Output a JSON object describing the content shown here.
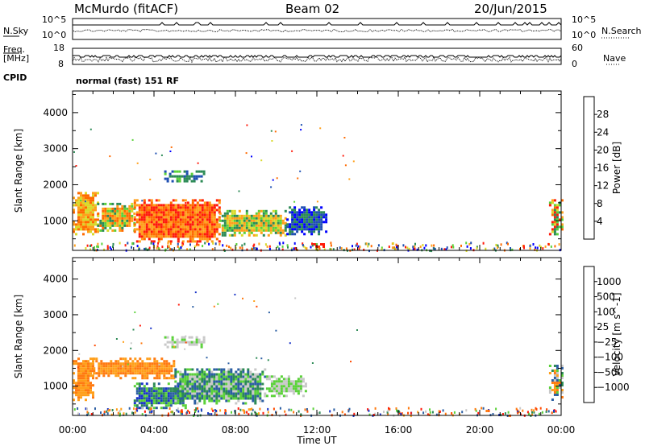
{
  "header": {
    "station": "McMurdo (fitACF)",
    "beam": "Beam 02",
    "date": "20/Jun/2015",
    "nsky_label": "N.Sky",
    "nsearch_label": "N.Search",
    "freq_label": "Freq.",
    "freq_unit": "[MHz]",
    "nave_label": "Nave",
    "cpid_label": "CPID",
    "cpid_value": "normal (fast) 151 RF",
    "noise_ticks_left": [
      "10^5",
      "10^0"
    ],
    "noise_ticks_right": [
      "10^5",
      "10^0"
    ],
    "freq_ticks": [
      "18",
      "8"
    ],
    "nave_ticks": [
      "60",
      "0"
    ]
  },
  "chart_data": [
    {
      "type": "heatmap",
      "title": "",
      "xlabel": "Time UT",
      "ylabel": "Slant Range [km]",
      "xlim": [
        0,
        24
      ],
      "ylim": [
        180,
        4600
      ],
      "x_ticks": [
        "00:00",
        "04:00",
        "08:00",
        "12:00",
        "16:00",
        "20:00",
        "00:00"
      ],
      "y_ticks": [
        1000,
        2000,
        3000,
        4000
      ],
      "colorbar": {
        "label": "Power [dB]",
        "ticks": [
          "4",
          "8",
          "12",
          "16",
          "20",
          "24",
          "28"
        ],
        "colors": [
          "#0000ff",
          "#1f4fb2",
          "#2c8a55",
          "#5bd13a",
          "#d9d92a",
          "#ff9f1a",
          "#ff6a00",
          "#ff1a0a"
        ]
      },
      "regions": [
        {
          "t0": 0.0,
          "t1": 1.2,
          "r0": 600,
          "r1": 1800,
          "level": "16-20"
        },
        {
          "t0": 1.2,
          "t1": 3.0,
          "r0": 700,
          "r1": 1500,
          "level": "12-24"
        },
        {
          "t0": 3.0,
          "t1": 7.2,
          "r0": 450,
          "r1": 1600,
          "level": "24-28+"
        },
        {
          "t0": 7.2,
          "t1": 10.5,
          "r0": 600,
          "r1": 1300,
          "level": "12-20"
        },
        {
          "t0": 10.5,
          "t1": 12.5,
          "r0": 600,
          "r1": 1400,
          "level": "4-12"
        },
        {
          "t0": 4.5,
          "t1": 6.5,
          "r0": 2100,
          "r1": 2400,
          "level": "8-16"
        },
        {
          "t0": 11.8,
          "t1": 12.3,
          "r0": 300,
          "r1": 380,
          "level": "28"
        },
        {
          "t0": 23.4,
          "t1": 24.0,
          "r0": 600,
          "r1": 1600,
          "level": "12-28"
        }
      ]
    },
    {
      "type": "heatmap",
      "title": "",
      "xlabel": "Time UT",
      "ylabel": "Slant Range [km]",
      "xlim": [
        0,
        24
      ],
      "ylim": [
        180,
        4600
      ],
      "x_ticks": [
        "00:00",
        "04:00",
        "08:00",
        "12:00",
        "16:00",
        "20:00",
        "00:00"
      ],
      "y_ticks": [
        1000,
        2000,
        3000,
        4000
      ],
      "colorbar": {
        "label": "Velocity [m s^-1]",
        "ticks": [
          "1000",
          "500",
          "100",
          "25",
          "−25",
          "−100",
          "−500",
          "−1000"
        ],
        "colors": [
          "#1a35c8",
          "#2c5fa3",
          "#2c8a55",
          "#5bd13a",
          "#c8c8c8",
          "#ff9f1a",
          "#ff7a10",
          "#ff4a00",
          "#ff1a0a"
        ]
      },
      "regions": [
        {
          "t0": 0.0,
          "t1": 1.0,
          "r0": 600,
          "r1": 1800,
          "level": "-100 to -500"
        },
        {
          "t0": 1.0,
          "t1": 5.0,
          "r0": 1200,
          "r1": 1800,
          "level": "-100 to -500"
        },
        {
          "t0": 3.0,
          "t1": 5.5,
          "r0": 400,
          "r1": 1100,
          "level": "100 to 1000"
        },
        {
          "t0": 5.0,
          "t1": 9.5,
          "r0": 550,
          "r1": 1500,
          "level": "25 to 500"
        },
        {
          "t0": 9.5,
          "t1": 11.5,
          "r0": 700,
          "r1": 1300,
          "level": "-25 to 100"
        },
        {
          "t0": 4.5,
          "t1": 6.5,
          "r0": 2100,
          "r1": 2400,
          "level": "-25 to 100"
        },
        {
          "t0": 23.4,
          "t1": 24.0,
          "r0": 600,
          "r1": 1600,
          "level": "-100 to 1000"
        }
      ]
    }
  ]
}
